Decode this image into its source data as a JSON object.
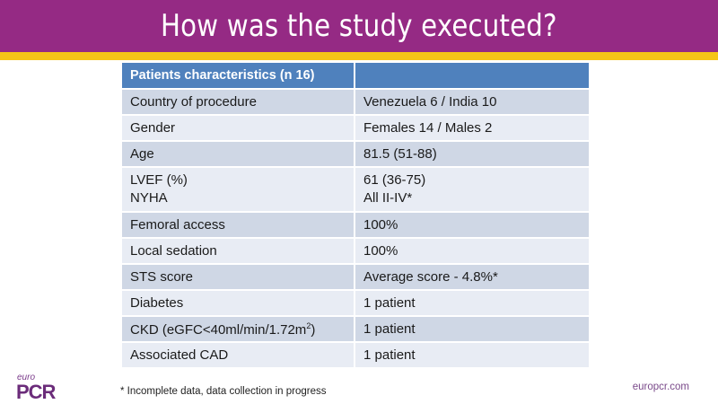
{
  "slide": {
    "title": "How was the study executed?",
    "colors": {
      "title_band": "#952a84",
      "accent_stripe": "#f5c518",
      "table_header": "#4f81bd",
      "row_dark": "#cfd7e5",
      "row_light": "#e8ecf4"
    }
  },
  "table": {
    "header": [
      "Patients characteristics (n 16)",
      ""
    ],
    "rows": [
      {
        "label": "Country of procedure",
        "value": "Venezuela 6 / India 10"
      },
      {
        "label": "Gender",
        "value": "Females 14 / Males 2"
      },
      {
        "label": "Age",
        "value": "81.5 (51-88)"
      },
      {
        "label": "LVEF (%)",
        "label2": "NYHA",
        "value": "61 (36-75)",
        "value2": "All II-IV*"
      },
      {
        "label": "Femoral access",
        "value": "100%"
      },
      {
        "label": "Local sedation",
        "value": "100%"
      },
      {
        "label": "STS score",
        "value": "Average score - 4.8%*"
      },
      {
        "label": "Diabetes",
        "value": "1 patient"
      },
      {
        "label": "CKD (eGFC<40ml/min/1.72m",
        "label_sup": "2",
        "label_suffix": ")",
        "value": "1 patient"
      },
      {
        "label": "Associated CAD",
        "value": "1 patient"
      }
    ]
  },
  "footnote": "* Incomplete data, data collection in progress",
  "logo": {
    "euro": "euro",
    "pcr": "PCR"
  },
  "site": "europcr.com"
}
